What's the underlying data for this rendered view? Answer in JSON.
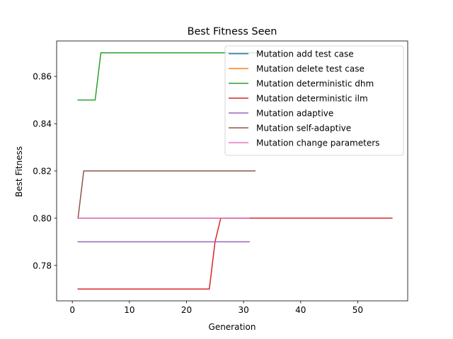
{
  "chart_data": {
    "type": "line",
    "title": "Best Fitness Seen",
    "xlabel": "Generation",
    "ylabel": "Best Fitness",
    "xlim": [
      -2.75,
      58.75
    ],
    "ylim": [
      0.765,
      0.875
    ],
    "xticks": [
      0,
      10,
      20,
      30,
      40,
      50
    ],
    "xtick_labels": [
      "0",
      "10",
      "20",
      "30",
      "40",
      "50"
    ],
    "yticks": [
      0.78,
      0.8,
      0.82,
      0.84,
      0.86
    ],
    "ytick_labels": [
      "0.78",
      "0.80",
      "0.82",
      "0.84",
      "0.86"
    ],
    "grid": false,
    "legend_position": "top-right",
    "series": [
      {
        "name": "Mutation add test case",
        "color": "#1f77b4",
        "x": [
          1,
          31
        ],
        "y": [
          0.8,
          0.8
        ]
      },
      {
        "name": "Mutation delete test case",
        "color": "#ff7f0e",
        "x": [
          1,
          31
        ],
        "y": [
          0.8,
          0.8
        ]
      },
      {
        "name": "Mutation deterministic dhm",
        "color": "#2ca02c",
        "x": [
          1,
          4,
          5,
          37
        ],
        "y": [
          0.85,
          0.85,
          0.87,
          0.87
        ]
      },
      {
        "name": "Mutation deterministic ilm",
        "color": "#d62728",
        "x": [
          1,
          24,
          25,
          26,
          56
        ],
        "y": [
          0.77,
          0.77,
          0.79,
          0.8,
          0.8
        ]
      },
      {
        "name": "Mutation adaptive",
        "color": "#9467bd",
        "x": [
          1,
          31
        ],
        "y": [
          0.79,
          0.79
        ]
      },
      {
        "name": "Mutation self-adaptive",
        "color": "#8c564b",
        "x": [
          1,
          2,
          32
        ],
        "y": [
          0.8,
          0.82,
          0.82
        ]
      },
      {
        "name": "Mutation change parameters",
        "color": "#e377c2",
        "x": [
          1,
          31
        ],
        "y": [
          0.8,
          0.8
        ]
      }
    ]
  }
}
